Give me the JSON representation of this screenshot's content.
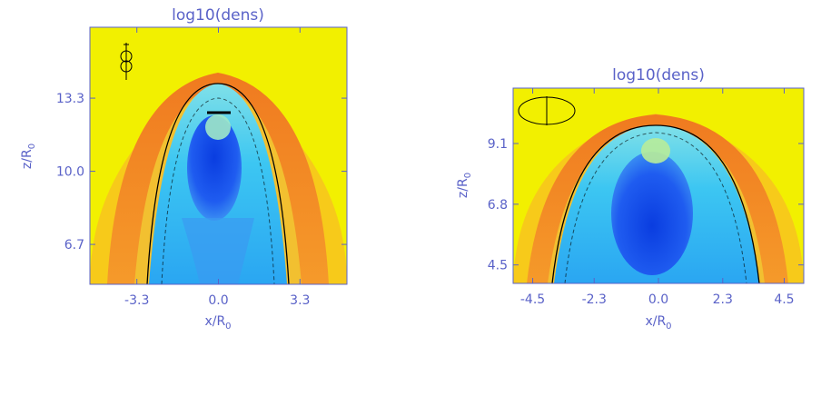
{
  "chart_data": [
    {
      "type": "heatmap",
      "title": "log10(dens)",
      "xlabel": "x/R",
      "xlabel_sub": "0",
      "ylabel": "z/R",
      "ylabel_sub": "0",
      "xticks": [
        -3.3,
        0.0,
        3.3
      ],
      "xtick_labels": [
        "-3.3",
        "0.0",
        "3.3"
      ],
      "yticks": [
        6.7,
        10.0,
        13.3
      ],
      "ytick_labels": [
        "6.7",
        "10.0",
        "13.3"
      ],
      "xlim": [
        -5.2,
        5.2
      ],
      "ylim": [
        4.9,
        16.5
      ],
      "colors": {
        "background": "#f2f000",
        "shell": "#ef7d1f",
        "cavity": "#2c6cf0",
        "halo": "#36c6f0",
        "contour": "#000000"
      }
    },
    {
      "type": "heatmap",
      "title": "log10(dens)",
      "xlabel": "x/R",
      "xlabel_sub": "0",
      "ylabel": "z/R",
      "ylabel_sub": "0",
      "xticks": [
        -4.5,
        -2.3,
        0.0,
        2.3,
        4.5
      ],
      "xtick_labels": [
        "-4.5",
        "-2.3",
        "0.0",
        "2.3",
        "4.5"
      ],
      "yticks": [
        4.5,
        6.8,
        9.1
      ],
      "ytick_labels": [
        "4.5",
        "6.8",
        "9.1"
      ],
      "xlim": [
        -5.2,
        5.2
      ],
      "ylim": [
        3.8,
        11.2
      ],
      "colors": {
        "background": "#f2f000",
        "shell": "#ef7d1f",
        "cavity": "#2c6cf0",
        "halo": "#36c6f0",
        "contour": "#000000"
      }
    }
  ]
}
